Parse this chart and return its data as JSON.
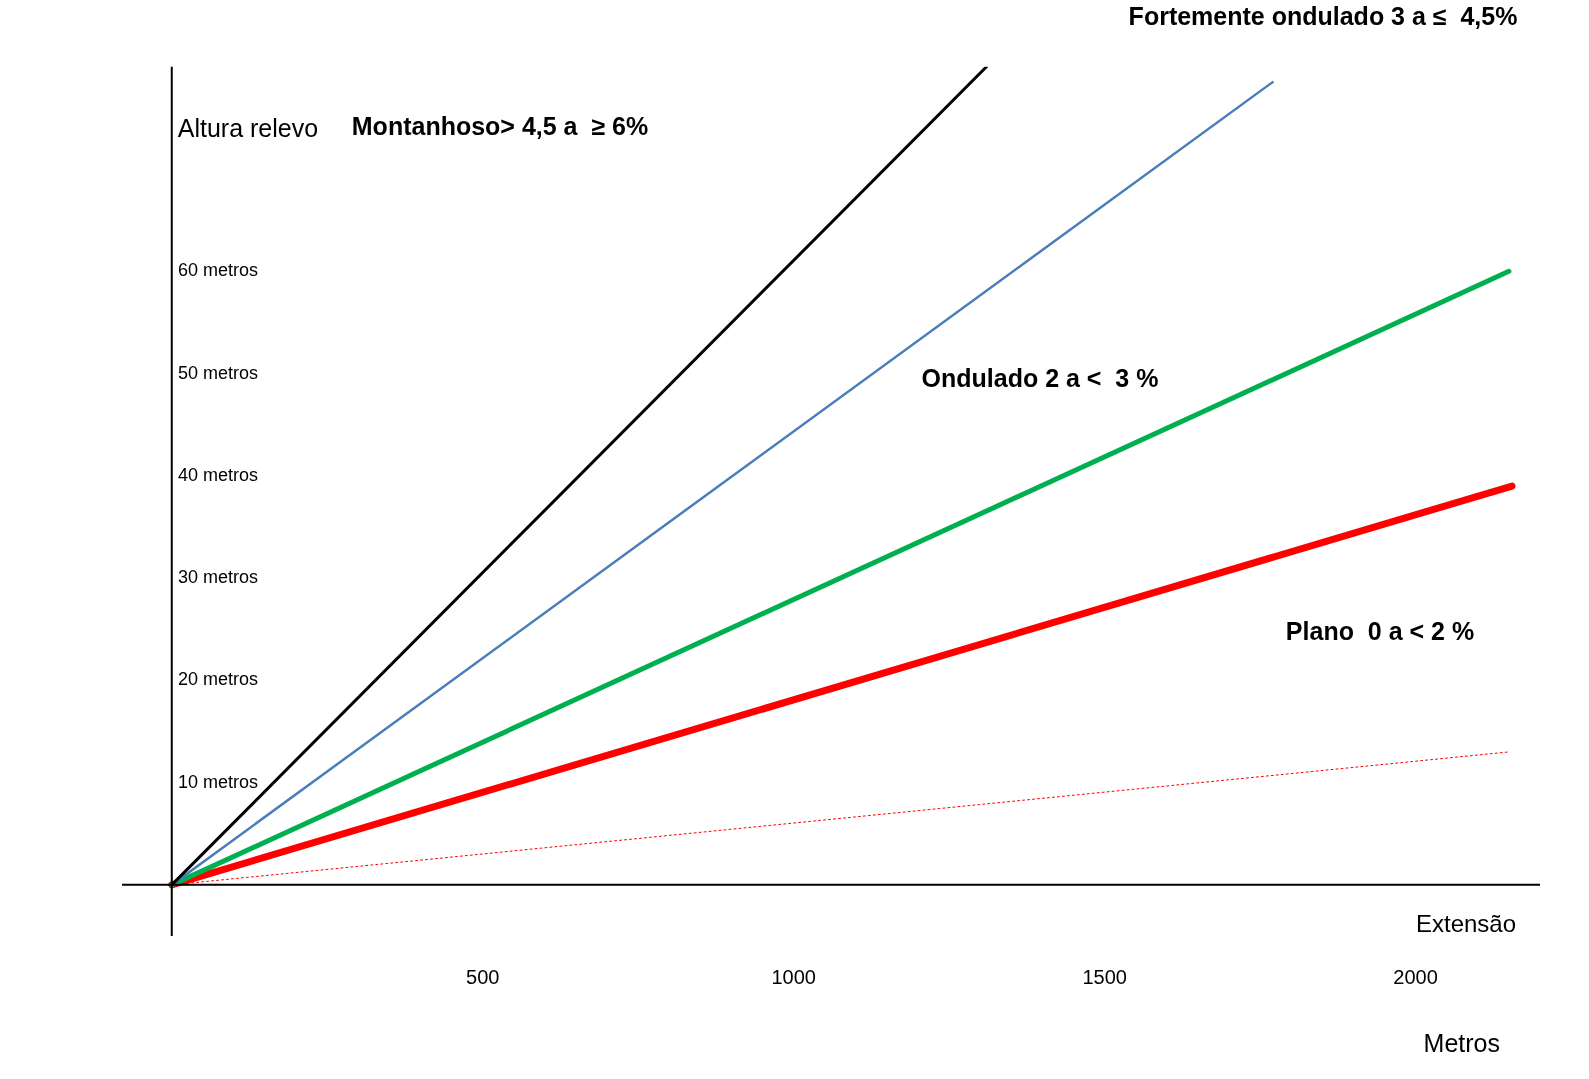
{
  "chart_data": {
    "type": "line",
    "xlabel": "Metros",
    "ylabel": "Altura relevo",
    "xlim": [
      -80,
      2200
    ],
    "ylim": [
      -5,
      80
    ],
    "xticks": [
      500,
      1000,
      1500,
      2000
    ],
    "yticks": [
      {
        "value": 10,
        "label": "10 metros"
      },
      {
        "value": 20,
        "label": "20 metros"
      },
      {
        "value": 30,
        "label": "30 metros"
      },
      {
        "value": 40,
        "label": "40 metros"
      },
      {
        "value": 50,
        "label": "50 metros"
      },
      {
        "value": 60,
        "label": "60 metros"
      }
    ],
    "grid": false,
    "legend": false,
    "marker": "none",
    "series": [
      {
        "color": "#000000",
        "x": [
          0,
          1310
        ],
        "values": [
          0,
          80
        ]
      },
      {
        "color": "#4a7ebb",
        "x": [
          0,
          1770
        ],
        "values": [
          0,
          78.5
        ]
      },
      {
        "color": "#00b050",
        "x": [
          0,
          2150
        ],
        "values": [
          0,
          60
        ]
      },
      {
        "color": "#ff0000",
        "x": [
          0,
          2155
        ],
        "values": [
          0,
          39
        ]
      },
      {
        "color": "#ff0000",
        "x": [
          0,
          2150
        ],
        "values": [
          0,
          13
        ],
        "line_style": "dotted"
      }
    ],
    "annotations": [
      "Montanhoso> 4,5 a  ≥ 6%",
      "Fortemente ondulado 3 a ≤  4,5%",
      "Ondulado 2 a <  3 %",
      "Plano  0 a < 2 %",
      "Extensão"
    ]
  }
}
